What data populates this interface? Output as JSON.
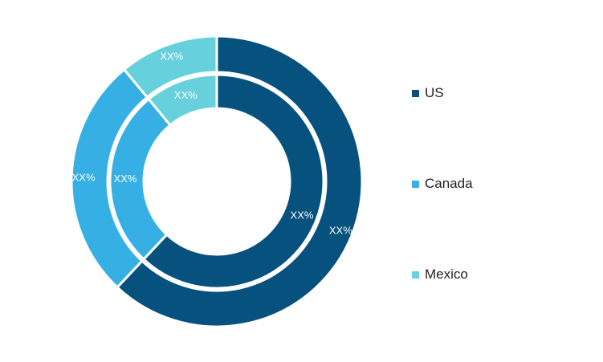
{
  "chart_data": {
    "type": "pie",
    "categories": [
      "US",
      "Canada",
      "Mexico"
    ],
    "colors": [
      "#07517f",
      "#36b0e4",
      "#66d1dc"
    ],
    "rings": [
      {
        "ring": "outer",
        "values": [
          62,
          27,
          11
        ],
        "labels": [
          "XX%",
          "XX%",
          "XX%"
        ]
      },
      {
        "ring": "inner",
        "values": [
          62,
          27,
          11
        ],
        "labels": [
          "XX%",
          "XX%",
          "XX%"
        ]
      }
    ],
    "legend": {
      "position": "right",
      "items": [
        {
          "label": "US",
          "color": "#07517f"
        },
        {
          "label": "Canada",
          "color": "#36b0e4"
        },
        {
          "label": "Mexico",
          "color": "#66d1dc"
        }
      ]
    }
  }
}
